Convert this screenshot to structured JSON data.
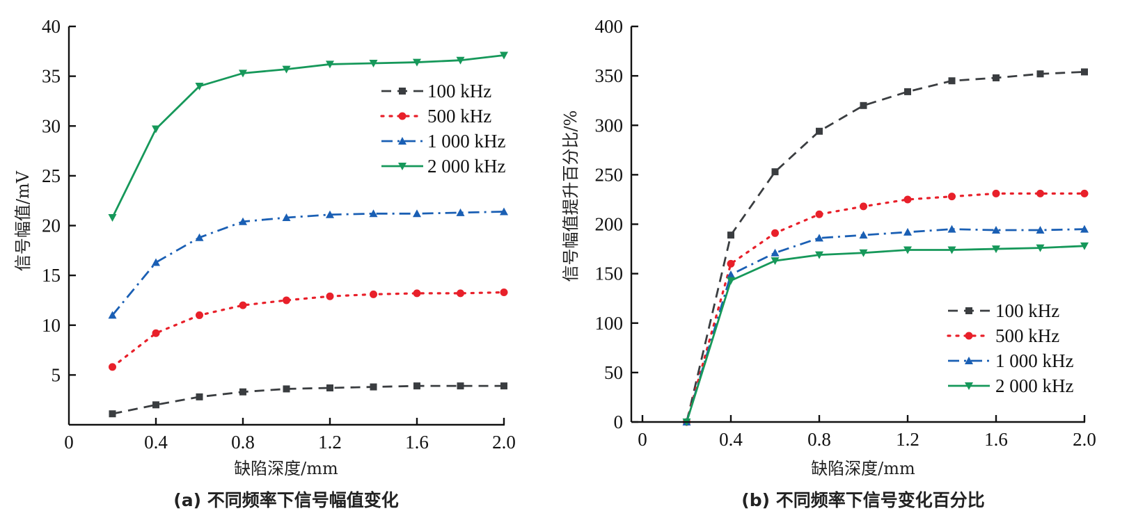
{
  "chart_data": [
    {
      "type": "line",
      "id": "a",
      "caption": "(a) 不同频率下信号幅值变化",
      "xlabel": "缺陷深度/mm",
      "ylabel": "信号幅值/mV",
      "xlim": [
        0,
        2.0
      ],
      "ylim": [
        0,
        40
      ],
      "xticks": [
        0,
        0.4,
        0.8,
        1.2,
        1.6,
        2.0
      ],
      "xtick_labels": [
        "0",
        "0.4",
        "0.8",
        "1.2",
        "1.6",
        "2.0"
      ],
      "yticks": [
        5,
        10,
        15,
        20,
        25,
        30,
        35,
        40
      ],
      "ytick_labels": [
        "5",
        "10",
        "15",
        "20",
        "25",
        "30",
        "35",
        "40"
      ],
      "grid": false,
      "legend_position": "top-right",
      "x": [
        0.2,
        0.4,
        0.6,
        0.8,
        1.0,
        1.2,
        1.4,
        1.6,
        1.8,
        2.0
      ],
      "series": [
        {
          "name": "100 kHz",
          "color": "#3a3d40",
          "style": "dashed",
          "marker": "square",
          "values": [
            1.1,
            2.0,
            2.8,
            3.3,
            3.6,
            3.7,
            3.8,
            3.9,
            3.9,
            3.9
          ]
        },
        {
          "name": "500 kHz",
          "color": "#e8202a",
          "style": "dotted",
          "marker": "circle",
          "values": [
            5.8,
            9.2,
            11.0,
            12.0,
            12.5,
            12.9,
            13.1,
            13.2,
            13.2,
            13.3
          ]
        },
        {
          "name": "1 000 kHz",
          "color": "#1a5fb4",
          "style": "dashdot",
          "marker": "triangle-up",
          "values": [
            11.0,
            16.3,
            18.8,
            20.4,
            20.8,
            21.1,
            21.2,
            21.2,
            21.3,
            21.4
          ]
        },
        {
          "name": "2 000 kHz",
          "color": "#16985a",
          "style": "solid",
          "marker": "triangle-down",
          "values": [
            20.8,
            29.7,
            34.0,
            35.3,
            35.7,
            36.2,
            36.3,
            36.4,
            36.6,
            37.1
          ]
        }
      ]
    },
    {
      "type": "line",
      "id": "b",
      "caption": "(b) 不同频率下信号变化百分比",
      "xlabel": "缺陷深度/mm",
      "ylabel": "信号幅值提升百分比/%",
      "xlim": [
        0,
        2.0
      ],
      "ylim": [
        0,
        400
      ],
      "xticks": [
        0,
        0.4,
        0.8,
        1.2,
        1.6,
        2.0
      ],
      "xtick_labels": [
        "0",
        "0.4",
        "0.8",
        "1.2",
        "1.6",
        "2.0"
      ],
      "yticks": [
        0,
        50,
        100,
        150,
        200,
        250,
        300,
        350,
        400
      ],
      "ytick_labels": [
        "0",
        "50",
        "100",
        "150",
        "200",
        "250",
        "300",
        "350",
        "400"
      ],
      "grid": false,
      "legend_position": "bottom-right",
      "x": [
        0.2,
        0.4,
        0.6,
        0.8,
        1.0,
        1.2,
        1.4,
        1.6,
        1.8,
        2.0
      ],
      "series": [
        {
          "name": "100 kHz",
          "color": "#3a3d40",
          "style": "dashed",
          "marker": "square",
          "values": [
            0,
            189,
            253,
            294,
            320,
            334,
            345,
            348,
            352,
            354
          ]
        },
        {
          "name": "500 kHz",
          "color": "#e8202a",
          "style": "dotted",
          "marker": "circle",
          "values": [
            0,
            160,
            191,
            210,
            218,
            225,
            228,
            231,
            231,
            231
          ]
        },
        {
          "name": "1 000 kHz",
          "color": "#1a5fb4",
          "style": "dashdot",
          "marker": "triangle-up",
          "values": [
            0,
            149,
            171,
            186,
            189,
            192,
            195,
            194,
            194,
            195
          ]
        },
        {
          "name": "2 000 kHz",
          "color": "#16985a",
          "style": "solid",
          "marker": "triangle-down",
          "values": [
            0,
            143,
            163,
            169,
            171,
            174,
            174,
            175,
            176,
            178
          ]
        }
      ]
    }
  ]
}
